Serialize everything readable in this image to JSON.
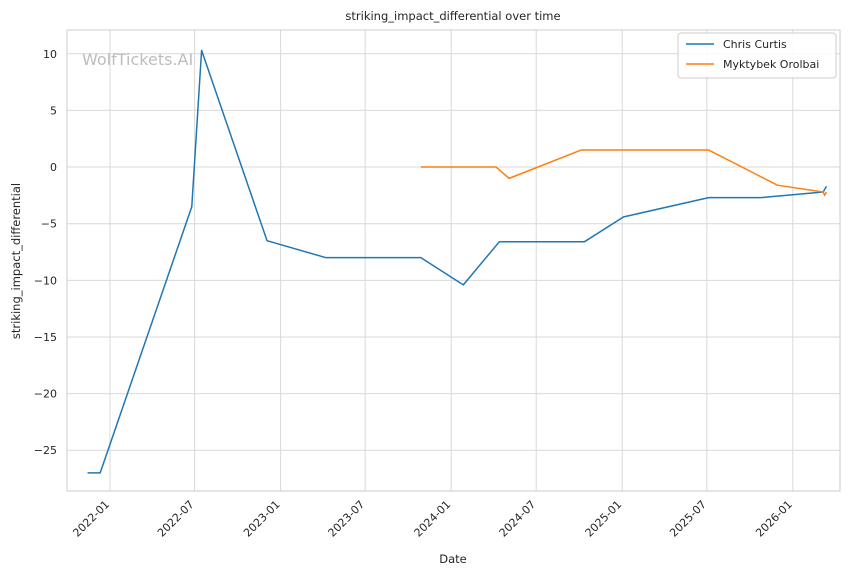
{
  "chart_data": {
    "type": "line",
    "title": "striking_impact_differential over time",
    "xlabel": "Date",
    "ylabel": "striking_impact_differential",
    "watermark": "WolfTickets.AI",
    "x_axis_type": "date",
    "xlim": [
      "2021-10-01",
      "2026-04-12"
    ],
    "ylim": [
      -28.6,
      12.1
    ],
    "x_ticks": [
      "2022-01",
      "2022-07",
      "2023-01",
      "2023-07",
      "2024-01",
      "2024-07",
      "2025-01",
      "2025-07",
      "2026-01"
    ],
    "y_ticks": [
      10,
      5,
      0,
      -5,
      -10,
      -15,
      -20,
      -25
    ],
    "y_tick_labels": [
      "10",
      "5",
      "0",
      "−5",
      "−10",
      "−15",
      "−20",
      "−25"
    ],
    "grid": true,
    "legend_position": "top-right",
    "series": [
      {
        "name": "Chris Curtis",
        "color": "#1f77b4",
        "points": [
          {
            "x": "2021-11-14",
            "y": -27.0
          },
          {
            "x": "2021-12-11",
            "y": -27.0
          },
          {
            "x": "2022-06-25",
            "y": -3.5
          },
          {
            "x": "2022-07-16",
            "y": 10.3
          },
          {
            "x": "2022-12-03",
            "y": -6.5
          },
          {
            "x": "2023-04-08",
            "y": -8.0
          },
          {
            "x": "2023-10-28",
            "y": -8.0
          },
          {
            "x": "2024-01-27",
            "y": -10.4
          },
          {
            "x": "2024-04-13",
            "y": -6.6
          },
          {
            "x": "2024-10-12",
            "y": -6.6
          },
          {
            "x": "2025-01-04",
            "y": -4.4
          },
          {
            "x": "2025-07-05",
            "y": -2.7
          },
          {
            "x": "2025-10-25",
            "y": -2.7
          },
          {
            "x": "2026-03-07",
            "y": -2.2
          },
          {
            "x": "2026-03-14",
            "y": -1.7
          }
        ]
      },
      {
        "name": "Myktybek Orolbai",
        "color": "#ff7f0e",
        "points": [
          {
            "x": "2023-10-28",
            "y": 0.0
          },
          {
            "x": "2024-04-06",
            "y": 0.0
          },
          {
            "x": "2024-05-04",
            "y": -1.0
          },
          {
            "x": "2024-10-05",
            "y": 1.5
          },
          {
            "x": "2025-07-05",
            "y": 1.5
          },
          {
            "x": "2025-11-29",
            "y": -1.6
          },
          {
            "x": "2026-03-07",
            "y": -2.2
          },
          {
            "x": "2026-03-10",
            "y": -2.5
          },
          {
            "x": "2026-03-14",
            "y": -2.2
          }
        ]
      }
    ]
  }
}
